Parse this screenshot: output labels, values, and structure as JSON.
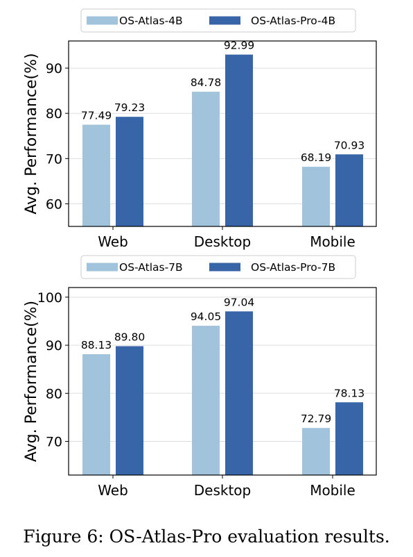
{
  "chart_data": [
    {
      "type": "bar",
      "categories": [
        "Web",
        "Desktop",
        "Mobile"
      ],
      "series": [
        {
          "name": "OS-Atlas-4B",
          "values": [
            77.49,
            84.78,
            68.19
          ],
          "color": "#a1c4dc"
        },
        {
          "name": "OS-Atlas-Pro-4B",
          "values": [
            79.23,
            92.99,
            70.93
          ],
          "color": "#3864a8"
        }
      ],
      "value_labels": [
        [
          "77.49",
          "84.78",
          "68.19"
        ],
        [
          "79.23",
          "92.99",
          "70.93"
        ]
      ],
      "ylabel": "Avg. Performance(%)",
      "ylim": [
        55,
        96
      ],
      "yticks": [
        60,
        70,
        80,
        90
      ],
      "grid": true,
      "legend": "top-center"
    },
    {
      "type": "bar",
      "categories": [
        "Web",
        "Desktop",
        "Mobile"
      ],
      "series": [
        {
          "name": "OS-Atlas-7B",
          "values": [
            88.13,
            94.05,
            72.79
          ],
          "color": "#a1c4dc"
        },
        {
          "name": "OS-Atlas-Pro-7B",
          "values": [
            89.8,
            97.04,
            78.13
          ],
          "color": "#3864a8"
        }
      ],
      "value_labels": [
        [
          "88.13",
          "94.05",
          "72.79"
        ],
        [
          "89.80",
          "97.04",
          "78.13"
        ]
      ],
      "ylabel": "Avg. Performance(%)",
      "ylim": [
        63,
        102
      ],
      "yticks": [
        70,
        80,
        90,
        100
      ],
      "grid": true,
      "legend": "top-center"
    }
  ],
  "caption": "Figure 6: OS-Atlas-Pro evaluation results."
}
